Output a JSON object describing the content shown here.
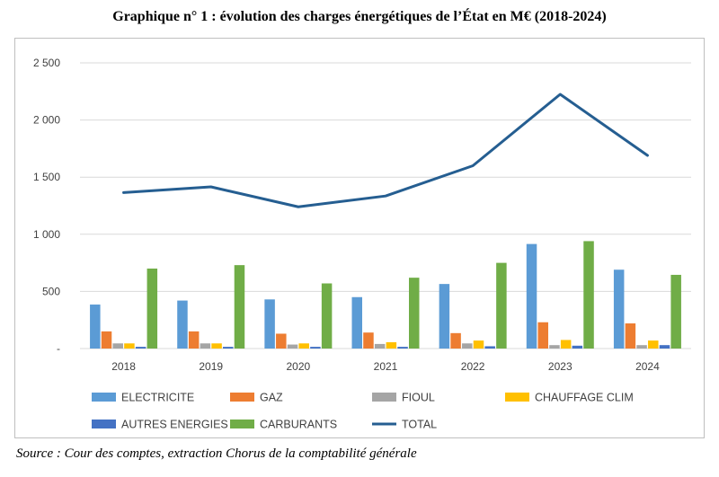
{
  "chart_data": {
    "type": "bar",
    "title": "Graphique n° 1 : évolution des charges énergétiques de l’État en M€ (2018-2024)",
    "xlabel": "",
    "ylabel": "",
    "ylim": [
      0,
      2500
    ],
    "yticks": [
      0,
      500,
      1000,
      1500,
      2000,
      2500
    ],
    "ytick_labels": [
      "-",
      "500",
      "1 000",
      "1 500",
      "2 000",
      "2 500"
    ],
    "grid": true,
    "legend_position": "bottom",
    "categories": [
      "2018",
      "2019",
      "2020",
      "2021",
      "2022",
      "2023",
      "2024"
    ],
    "series": [
      {
        "name": "ELECTRICITE",
        "kind": "bar",
        "color": "#5B9BD5",
        "values": [
          385,
          420,
          430,
          450,
          565,
          915,
          690
        ]
      },
      {
        "name": "GAZ",
        "kind": "bar",
        "color": "#ED7D31",
        "values": [
          150,
          150,
          130,
          140,
          135,
          230,
          220
        ]
      },
      {
        "name": "FIOUL",
        "kind": "bar",
        "color": "#A5A5A5",
        "values": [
          45,
          45,
          35,
          40,
          45,
          30,
          30
        ]
      },
      {
        "name": "CHAUFFAGE CLIM",
        "kind": "bar",
        "color": "#FFC000",
        "values": [
          45,
          45,
          45,
          55,
          70,
          75,
          70
        ]
      },
      {
        "name": "AUTRES ENERGIES",
        "kind": "bar",
        "color": "#4472C4",
        "values": [
          15,
          15,
          15,
          15,
          20,
          25,
          30
        ]
      },
      {
        "name": "CARBURANTS",
        "kind": "bar",
        "color": "#70AD47",
        "values": [
          700,
          730,
          570,
          620,
          750,
          940,
          645
        ]
      },
      {
        "name": "TOTAL",
        "kind": "line",
        "color": "#255E91",
        "values": [
          1365,
          1415,
          1240,
          1335,
          1600,
          2225,
          1690
        ]
      }
    ]
  },
  "source": "Source : Cour des comptes, extraction Chorus de la comptabilité générale"
}
